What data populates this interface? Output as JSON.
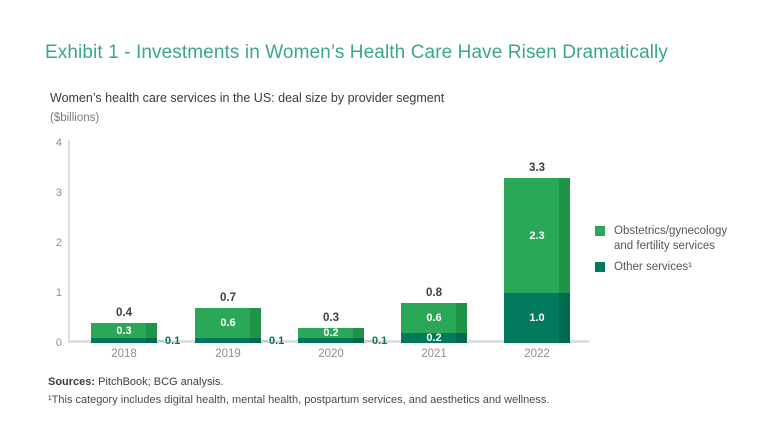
{
  "title": "Exhibit 1 - Investments in Women’s Health Care Have Risen Dramatically",
  "subtitle": "Women’s health care services in the US: deal size by provider segment",
  "units_label": "($billions)",
  "chart_data": {
    "type": "bar",
    "stacked": true,
    "title": "Women’s health care services in the US: deal size by provider segment",
    "ylabel": "($billions)",
    "categories": [
      "2018",
      "2019",
      "2020",
      "2021",
      "2022"
    ],
    "series": [
      {
        "name": "Obstetrics/gynecology and fertility services",
        "stack_position": "top",
        "values": [
          0.3,
          0.6,
          0.2,
          0.6,
          2.3
        ],
        "value_labels": [
          "0.3",
          "0.6",
          "0.2",
          "0.6",
          "2.3"
        ],
        "color": "#2aa857",
        "edge_color": "#1f9449"
      },
      {
        "name": "Other services¹",
        "stack_position": "bottom",
        "values": [
          0.1,
          0.1,
          0.1,
          0.2,
          1.0
        ],
        "value_labels": [
          "0.1",
          "0.1",
          "0.1",
          "0.2",
          "1.0"
        ],
        "color": "#00795c",
        "edge_color": "#006a50"
      }
    ],
    "totals": [
      0.4,
      0.7,
      0.3,
      0.8,
      3.3
    ],
    "total_labels": [
      "0.4",
      "0.7",
      "0.3",
      "0.8",
      "3.3"
    ],
    "ylim": [
      0,
      4
    ],
    "yticks": [
      "0",
      "1",
      "2",
      "3",
      "4"
    ],
    "grid": false,
    "legend_position": "right"
  },
  "legend": {
    "items": [
      {
        "label": "Obstetrics/gynecology and fertility services",
        "color": "#2aa857"
      },
      {
        "label": "Other services¹",
        "color": "#00795c"
      }
    ]
  },
  "footer": {
    "sources_label": "Sources:",
    "sources_text": " PitchBook; BCG analysis.",
    "footnote": "¹This category includes digital health, mental health, postpartum services, and aesthetics and wellness."
  },
  "colors": {
    "title_text": "#3aa78c",
    "bar_light_green": "#2aa857",
    "bar_dark_green": "#00795c",
    "axis_line": "#dedede",
    "axis_text": "#8e8e8e",
    "total_label_text": "#3d3d3d",
    "inner_label_text": "#ffffff",
    "outside_label_text": "#00795c",
    "leader_dash": "#c9c9c9"
  }
}
